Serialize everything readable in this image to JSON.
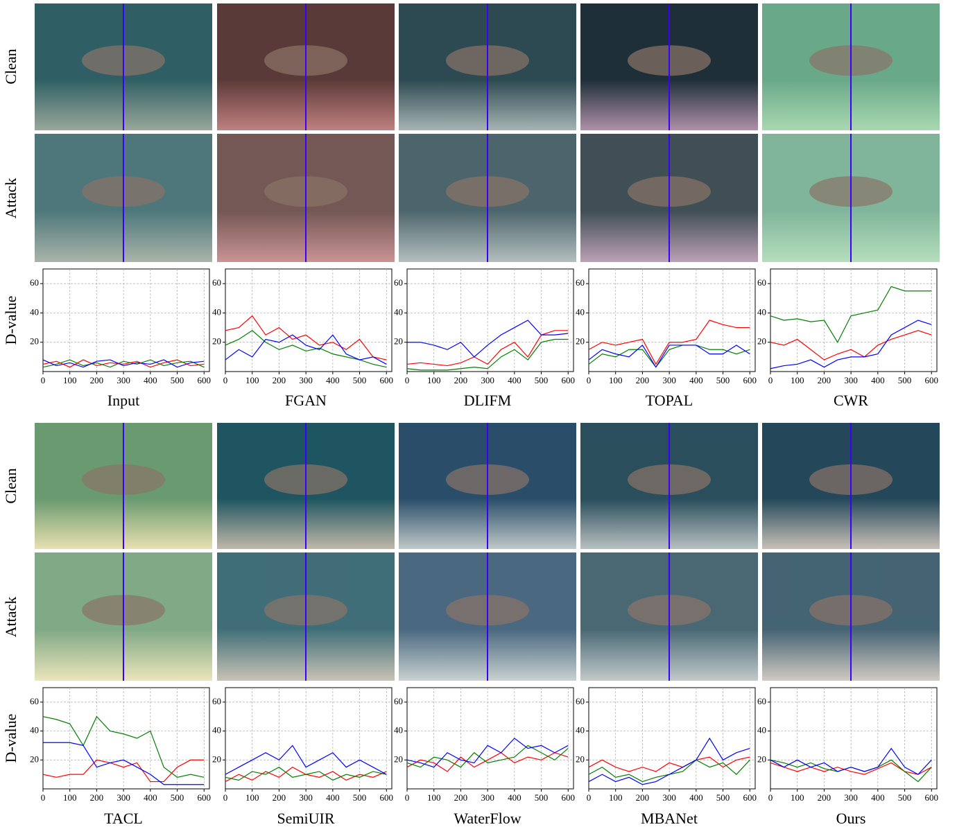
{
  "row_labels": [
    "Clean",
    "Attack",
    "D-value"
  ],
  "chart_data": [
    {
      "type": "line",
      "title": "Input",
      "x": [
        0,
        50,
        100,
        150,
        200,
        250,
        300,
        350,
        400,
        450,
        500,
        550,
        600
      ],
      "xlim": [
        0,
        620
      ],
      "ylim": [
        0,
        70
      ],
      "xticks": [
        0,
        100,
        200,
        300,
        400,
        500,
        600
      ],
      "yticks": [
        20,
        40,
        60
      ],
      "grid": true,
      "series": [
        {
          "color": "#ff0000",
          "values": [
            5,
            7,
            3,
            8,
            4,
            6,
            5,
            7,
            3,
            6,
            8,
            4,
            5
          ]
        },
        {
          "color": "#008000",
          "values": [
            3,
            5,
            8,
            4,
            6,
            3,
            7,
            5,
            8,
            4,
            6,
            7,
            3
          ]
        },
        {
          "color": "#0000ff",
          "values": [
            8,
            4,
            6,
            3,
            7,
            8,
            4,
            6,
            5,
            8,
            3,
            6,
            7
          ]
        }
      ]
    },
    {
      "type": "line",
      "title": "FGAN",
      "x": [
        0,
        50,
        100,
        150,
        200,
        250,
        300,
        350,
        400,
        450,
        500,
        550,
        600
      ],
      "xlim": [
        0,
        620
      ],
      "ylim": [
        0,
        70
      ],
      "xticks": [
        0,
        100,
        200,
        300,
        400,
        500,
        600
      ],
      "yticks": [
        20,
        40,
        60
      ],
      "grid": true,
      "series": [
        {
          "color": "#ff0000",
          "values": [
            28,
            30,
            38,
            25,
            30,
            22,
            25,
            18,
            20,
            15,
            22,
            10,
            8
          ]
        },
        {
          "color": "#008000",
          "values": [
            18,
            22,
            28,
            20,
            15,
            18,
            14,
            16,
            12,
            10,
            8,
            5,
            3
          ]
        },
        {
          "color": "#0000ff",
          "values": [
            8,
            15,
            10,
            22,
            20,
            25,
            18,
            15,
            25,
            12,
            8,
            10,
            5
          ]
        }
      ]
    },
    {
      "type": "line",
      "title": "DLIFM",
      "x": [
        0,
        50,
        100,
        150,
        200,
        250,
        300,
        350,
        400,
        450,
        500,
        550,
        600
      ],
      "xlim": [
        0,
        620
      ],
      "ylim": [
        0,
        70
      ],
      "xticks": [
        0,
        100,
        200,
        300,
        400,
        500,
        600
      ],
      "yticks": [
        20,
        40,
        60
      ],
      "grid": true,
      "series": [
        {
          "color": "#ff0000",
          "values": [
            5,
            6,
            5,
            4,
            6,
            10,
            5,
            15,
            20,
            10,
            25,
            28,
            28
          ]
        },
        {
          "color": "#008000",
          "values": [
            2,
            1,
            1,
            1,
            2,
            3,
            2,
            10,
            15,
            8,
            20,
            22,
            22
          ]
        },
        {
          "color": "#0000ff",
          "values": [
            20,
            20,
            18,
            15,
            20,
            10,
            18,
            25,
            30,
            35,
            25,
            25,
            26
          ]
        }
      ]
    },
    {
      "type": "line",
      "title": "TOPAL",
      "x": [
        0,
        50,
        100,
        150,
        200,
        250,
        300,
        350,
        400,
        450,
        500,
        550,
        600
      ],
      "xlim": [
        0,
        620
      ],
      "ylim": [
        0,
        70
      ],
      "xticks": [
        0,
        100,
        200,
        300,
        400,
        500,
        600
      ],
      "yticks": [
        20,
        40,
        60
      ],
      "grid": true,
      "series": [
        {
          "color": "#ff0000",
          "values": [
            15,
            20,
            18,
            20,
            22,
            5,
            20,
            20,
            22,
            35,
            32,
            30,
            30
          ]
        },
        {
          "color": "#008000",
          "values": [
            5,
            12,
            10,
            15,
            15,
            3,
            15,
            18,
            18,
            15,
            15,
            12,
            15
          ]
        },
        {
          "color": "#0000ff",
          "values": [
            8,
            15,
            12,
            10,
            18,
            3,
            18,
            18,
            18,
            12,
            12,
            18,
            12
          ]
        }
      ]
    },
    {
      "type": "line",
      "title": "CWR",
      "x": [
        0,
        50,
        100,
        150,
        200,
        250,
        300,
        350,
        400,
        450,
        500,
        550,
        600
      ],
      "xlim": [
        0,
        620
      ],
      "ylim": [
        0,
        70
      ],
      "xticks": [
        0,
        100,
        200,
        300,
        400,
        500,
        600
      ],
      "yticks": [
        20,
        40,
        60
      ],
      "grid": true,
      "series": [
        {
          "color": "#ff0000",
          "values": [
            20,
            18,
            22,
            15,
            8,
            12,
            15,
            10,
            18,
            22,
            25,
            28,
            25
          ]
        },
        {
          "color": "#008000",
          "values": [
            38,
            35,
            36,
            34,
            35,
            20,
            38,
            40,
            42,
            58,
            55,
            55,
            55
          ]
        },
        {
          "color": "#0000ff",
          "values": [
            2,
            4,
            5,
            8,
            3,
            8,
            10,
            10,
            12,
            25,
            30,
            35,
            32
          ]
        }
      ]
    },
    {
      "type": "line",
      "title": "TACL",
      "x": [
        0,
        50,
        100,
        150,
        200,
        250,
        300,
        350,
        400,
        450,
        500,
        550,
        600
      ],
      "xlim": [
        0,
        620
      ],
      "ylim": [
        0,
        70
      ],
      "xticks": [
        0,
        100,
        200,
        300,
        400,
        500,
        600
      ],
      "yticks": [
        20,
        40,
        60
      ],
      "grid": true,
      "series": [
        {
          "color": "#ff0000",
          "values": [
            10,
            8,
            10,
            10,
            20,
            18,
            15,
            18,
            5,
            5,
            15,
            20,
            20
          ]
        },
        {
          "color": "#008000",
          "values": [
            50,
            48,
            45,
            30,
            50,
            40,
            38,
            35,
            40,
            15,
            8,
            10,
            8
          ]
        },
        {
          "color": "#0000ff",
          "values": [
            32,
            32,
            32,
            30,
            15,
            18,
            20,
            15,
            10,
            3,
            3,
            3,
            3
          ]
        }
      ]
    },
    {
      "type": "line",
      "title": "SemiUIR",
      "x": [
        0,
        50,
        100,
        150,
        200,
        250,
        300,
        350,
        400,
        450,
        500,
        550,
        600
      ],
      "xlim": [
        0,
        620
      ],
      "ylim": [
        0,
        70
      ],
      "xticks": [
        0,
        100,
        200,
        300,
        400,
        500,
        600
      ],
      "yticks": [
        20,
        40,
        60
      ],
      "grid": true,
      "series": [
        {
          "color": "#ff0000",
          "values": [
            5,
            10,
            6,
            12,
            8,
            15,
            10,
            8,
            12,
            6,
            10,
            8,
            12
          ]
        },
        {
          "color": "#008000",
          "values": [
            8,
            6,
            12,
            10,
            15,
            8,
            10,
            12,
            6,
            10,
            8,
            12,
            10
          ]
        },
        {
          "color": "#0000ff",
          "values": [
            10,
            15,
            20,
            25,
            20,
            30,
            15,
            20,
            25,
            15,
            20,
            15,
            10
          ]
        }
      ]
    },
    {
      "type": "line",
      "title": "WaterFlow",
      "x": [
        0,
        50,
        100,
        150,
        200,
        250,
        300,
        350,
        400,
        450,
        500,
        550,
        600
      ],
      "xlim": [
        0,
        620
      ],
      "ylim": [
        0,
        70
      ],
      "xticks": [
        0,
        100,
        200,
        300,
        400,
        500,
        600
      ],
      "yticks": [
        20,
        40,
        60
      ],
      "grid": true,
      "series": [
        {
          "color": "#ff0000",
          "values": [
            15,
            20,
            18,
            12,
            22,
            15,
            20,
            25,
            18,
            22,
            20,
            25,
            22
          ]
        },
        {
          "color": "#008000",
          "values": [
            18,
            15,
            22,
            20,
            15,
            25,
            18,
            20,
            22,
            30,
            25,
            20,
            28
          ]
        },
        {
          "color": "#0000ff",
          "values": [
            20,
            18,
            15,
            25,
            20,
            18,
            30,
            25,
            35,
            28,
            30,
            25,
            30
          ]
        }
      ]
    },
    {
      "type": "line",
      "title": "MBANet",
      "x": [
        0,
        50,
        100,
        150,
        200,
        250,
        300,
        350,
        400,
        450,
        500,
        550,
        600
      ],
      "xlim": [
        0,
        620
      ],
      "ylim": [
        0,
        70
      ],
      "xticks": [
        0,
        100,
        200,
        300,
        400,
        500,
        600
      ],
      "yticks": [
        20,
        40,
        60
      ],
      "grid": true,
      "series": [
        {
          "color": "#ff0000",
          "values": [
            15,
            20,
            15,
            12,
            15,
            12,
            18,
            15,
            20,
            22,
            15,
            20,
            22
          ]
        },
        {
          "color": "#008000",
          "values": [
            10,
            15,
            8,
            10,
            5,
            8,
            10,
            12,
            20,
            15,
            18,
            10,
            20
          ]
        },
        {
          "color": "#0000ff",
          "values": [
            5,
            10,
            5,
            8,
            3,
            5,
            10,
            15,
            20,
            35,
            20,
            25,
            28
          ]
        }
      ]
    },
    {
      "type": "line",
      "title": "Ours",
      "x": [
        0,
        50,
        100,
        150,
        200,
        250,
        300,
        350,
        400,
        450,
        500,
        550,
        600
      ],
      "xlim": [
        0,
        620
      ],
      "ylim": [
        0,
        70
      ],
      "xticks": [
        0,
        100,
        200,
        300,
        400,
        500,
        600
      ],
      "yticks": [
        20,
        40,
        60
      ],
      "grid": true,
      "series": [
        {
          "color": "#ff0000",
          "values": [
            18,
            15,
            12,
            15,
            12,
            15,
            12,
            10,
            14,
            18,
            12,
            10,
            15
          ]
        },
        {
          "color": "#008000",
          "values": [
            20,
            18,
            15,
            18,
            14,
            12,
            15,
            12,
            15,
            20,
            12,
            5,
            15
          ]
        },
        {
          "color": "#0000ff",
          "values": [
            20,
            15,
            20,
            15,
            18,
            12,
            15,
            12,
            15,
            28,
            15,
            10,
            20
          ]
        }
      ]
    }
  ]
}
